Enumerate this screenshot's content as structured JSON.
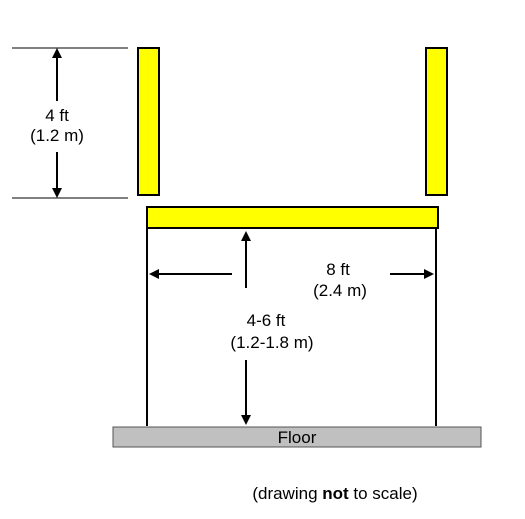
{
  "colors": {
    "board_fill": "#ffff00",
    "board_stroke": "#000000",
    "floor_fill": "#c0c0c0",
    "line": "#000000"
  },
  "labels": {
    "upright_height": "4 ft",
    "upright_height_metric": "(1.2 m)",
    "width": "8 ft",
    "width_metric": "(2.4 m)",
    "clearance_height": "4-6 ft",
    "clearance_height_metric": "(1.2-1.8 m)",
    "floor": "Floor"
  },
  "footnote": {
    "before": "(drawing ",
    "emphasis": "not",
    "after": " to scale)"
  }
}
